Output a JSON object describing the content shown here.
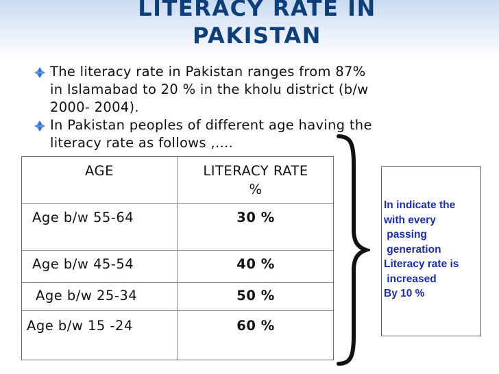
{
  "slide": {
    "title_lines": [
      "LITERACY RATE IN",
      "PAKISTAN"
    ],
    "bullets": [
      {
        "icon": "diamond-bullet-icon",
        "lines": [
          "The literacy rate in Pakistan ranges from 87%",
          "in Islamabad to 20 % in the kholu district (b/w",
          "2000- 2004)."
        ]
      },
      {
        "icon": "diamond-bullet-icon",
        "lines": [
          "In Pakistan peoples of different age having the",
          "literacy rate as follows ,…."
        ]
      }
    ],
    "table": {
      "headers": {
        "age": "AGE",
        "rate_line1": "LITERACY RATE",
        "rate_line2": "%"
      },
      "rows": [
        {
          "age": "Age b/w 55-64",
          "rate": "30 %"
        },
        {
          "age": "Age b/w 45-54",
          "rate": "40 %"
        },
        {
          "age": "Age b/w 25-34",
          "rate": "50 %"
        },
        {
          "age": "Age b/w 15 -24",
          "rate": "60 %"
        }
      ]
    },
    "note_lines": [
      "In indicate the",
      "with every",
      " passing",
      " generation",
      "Literacy rate is",
      " increased",
      "By 10 %"
    ],
    "colors": {
      "title": "#0f3f7a",
      "note_text": "#1a2ea8",
      "bullet_icon": "#2f6fc4"
    }
  }
}
